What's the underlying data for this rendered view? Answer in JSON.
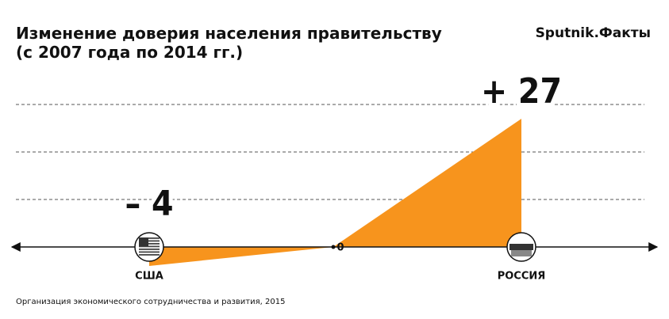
{
  "chart_data": {
    "type": "triangle",
    "title": [
      "Изменение доверия населения правительству",
      "(с 2007 года по 2014 гг.)"
    ],
    "brand": "Sputnik.Факты",
    "source": "Организация экономического сотрудничества и развития, 2015",
    "categories": [
      "США",
      "РОССИЯ"
    ],
    "values": [
      -4,
      27
    ],
    "value_labels": [
      "– 4",
      "+ 27"
    ],
    "color": "#f7941d",
    "ylim": [
      -5,
      30
    ],
    "yticks": [
      0
    ],
    "grid_lines": [
      10,
      20,
      30
    ]
  }
}
